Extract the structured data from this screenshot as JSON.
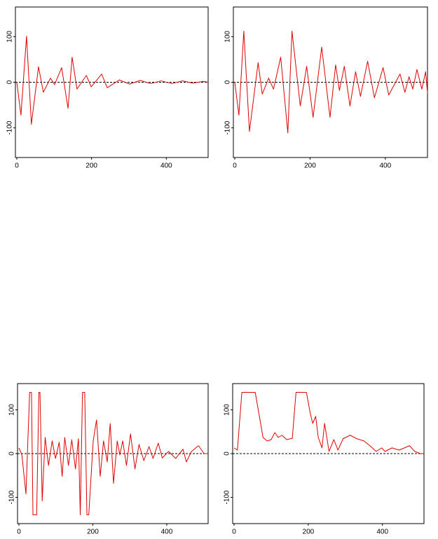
{
  "chart_data": [
    {
      "type": "line",
      "xlim": [
        0,
        512
      ],
      "ylim": [
        -165,
        165
      ],
      "xticks": [
        0,
        200,
        400
      ],
      "yticks": [
        -100,
        0,
        100
      ],
      "zero_line": "dashed",
      "x": [
        0,
        11,
        26,
        39,
        58,
        71,
        90,
        101,
        120,
        137,
        148,
        161,
        186,
        199,
        227,
        242,
        274,
        302,
        330,
        358,
        386,
        415,
        443,
        471,
        499,
        512
      ],
      "series": [
        {
          "color": "#e00000",
          "values": [
            0,
            -72,
            101,
            -92,
            34,
            -22,
            9,
            -5,
            32,
            -57,
            55,
            -15,
            15,
            -10,
            18,
            -12,
            5,
            -4,
            4,
            -3,
            3,
            -3,
            3,
            -2,
            2,
            0
          ]
        }
      ]
    },
    {
      "type": "line",
      "xlim": [
        0,
        512
      ],
      "ylim": [
        -165,
        165
      ],
      "xticks": [
        0,
        200,
        400
      ],
      "yticks": [
        -100,
        0,
        100
      ],
      "zero_line": "dashed",
      "x": [
        0,
        11,
        24,
        39,
        62,
        73,
        90,
        103,
        122,
        141,
        152,
        174,
        191,
        208,
        231,
        253,
        268,
        278,
        291,
        306,
        321,
        334,
        353,
        371,
        394,
        409,
        439,
        452,
        463,
        473,
        484,
        497,
        507,
        512
      ],
      "series": [
        {
          "color": "#e00000",
          "values": [
            0,
            -72,
            112,
            -108,
            43,
            -26,
            9,
            -15,
            55,
            -111,
            112,
            -52,
            35,
            -77,
            77,
            -77,
            38,
            -18,
            35,
            -52,
            23,
            -31,
            46,
            -34,
            32,
            -28,
            18,
            -22,
            12,
            -15,
            28,
            -15,
            23,
            -23
          ]
        }
      ]
    },
    {
      "type": "line",
      "xlim": [
        0,
        512
      ],
      "ylim": [
        -160,
        160
      ],
      "xticks": [
        0,
        200,
        400
      ],
      "yticks": [
        -100,
        0,
        100
      ],
      "zero_line": "dashed",
      "x": [
        0,
        8,
        19,
        29,
        34,
        38,
        48,
        54,
        57,
        63,
        71,
        80,
        90,
        99,
        109,
        117,
        124,
        134,
        143,
        153,
        161,
        166,
        172,
        178,
        184,
        189,
        201,
        210,
        220,
        229,
        239,
        247,
        256,
        266,
        273,
        281,
        291,
        302,
        314,
        325,
        338,
        352,
        363,
        377,
        388,
        405,
        424,
        444,
        453,
        467,
        486,
        501,
        512
      ],
      "series": [
        {
          "color": "#e00000",
          "values": [
            13,
            -3,
            -92,
            140,
            140,
            -140,
            -140,
            140,
            140,
            -108,
            37,
            -27,
            29,
            -11,
            26,
            -52,
            37,
            -27,
            32,
            -35,
            34,
            -140,
            140,
            140,
            -140,
            -140,
            29,
            77,
            -52,
            29,
            -19,
            69,
            -68,
            29,
            -3,
            29,
            -27,
            45,
            -35,
            21,
            -16,
            16,
            -11,
            24,
            -10,
            5,
            -11,
            10,
            -19,
            5,
            18,
            0,
            0
          ]
        }
      ]
    },
    {
      "type": "line",
      "xlim": [
        0,
        512
      ],
      "ylim": [
        -160,
        160
      ],
      "xticks": [
        0,
        200,
        400
      ],
      "yticks": [
        -100,
        0,
        100
      ],
      "zero_line": "dashed",
      "x": [
        0,
        9,
        21,
        57,
        70,
        78,
        89,
        100,
        110,
        119,
        129,
        142,
        157,
        167,
        195,
        205,
        212,
        220,
        227,
        237,
        244,
        256,
        269,
        280,
        294,
        313,
        331,
        350,
        369,
        383,
        398,
        407,
        426,
        445,
        473,
        487,
        502,
        512
      ],
      "series": [
        {
          "color": "#e00000",
          "values": [
            13,
            8,
            140,
            140,
            77,
            37,
            29,
            32,
            48,
            37,
            42,
            32,
            35,
            140,
            140,
            94,
            69,
            85,
            37,
            13,
            69,
            5,
            32,
            8,
            34,
            42,
            34,
            29,
            16,
            5,
            13,
            5,
            13,
            8,
            18,
            5,
            0,
            0
          ]
        }
      ]
    }
  ]
}
